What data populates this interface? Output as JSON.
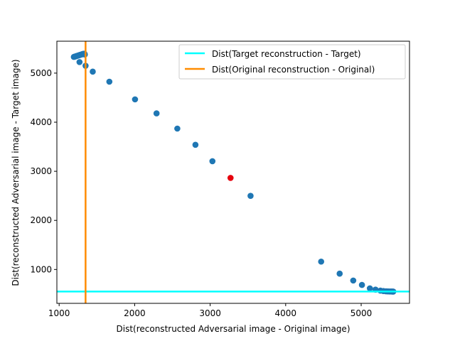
{
  "chart_data": {
    "type": "scatter",
    "title": "",
    "xlabel": "Dist(reconstructed Adversarial image - Original image)",
    "ylabel": "Dist(reconstructed Adversarial image - Target image)",
    "xlim": [
      970,
      5640
    ],
    "ylim": [
      310,
      5650
    ],
    "xticks": [
      1000,
      2000,
      3000,
      4000,
      5000
    ],
    "yticks": [
      1000,
      2000,
      3000,
      4000,
      5000
    ],
    "grid": false,
    "legend_position": "top-right",
    "colors": {
      "points": "#1f77b4",
      "highlight": "#e6000d",
      "target_line": "#00ffff",
      "original_line": "#ff8c00"
    },
    "series": [
      {
        "kind": "points",
        "color": "#1f77b4",
        "x": [
          1195,
          1205,
          1215,
          1225,
          1235,
          1245,
          1255,
          1265,
          1275,
          1285,
          1295,
          1305,
          1315,
          1325,
          1335,
          1340,
          1270,
          1350,
          1445,
          1665,
          2005,
          2290,
          2565,
          2805,
          3030,
          3535,
          4470,
          4715,
          4895,
          5010,
          5115,
          5190,
          5255,
          5295,
          5330,
          5355,
          5380,
          5400,
          5415,
          5425
        ],
        "y": [
          5330,
          5335,
          5340,
          5345,
          5350,
          5355,
          5360,
          5365,
          5370,
          5375,
          5380,
          5385,
          5390,
          5395,
          5395,
          5380,
          5225,
          5150,
          5030,
          4825,
          4465,
          4180,
          3870,
          3540,
          3205,
          2500,
          1160,
          915,
          775,
          685,
          615,
          590,
          570,
          560,
          555,
          553,
          552,
          551,
          550,
          550
        ]
      },
      {
        "kind": "points",
        "color": "#e6000d",
        "x": [
          3270
        ],
        "y": [
          2865
        ]
      },
      {
        "kind": "hline",
        "name": "Dist(Target reconstruction - Target)",
        "color": "#00ffff",
        "y": 550
      },
      {
        "kind": "vline",
        "name": "Dist(Original reconstruction - Original)",
        "color": "#ff8c00",
        "x": 1350
      }
    ]
  }
}
